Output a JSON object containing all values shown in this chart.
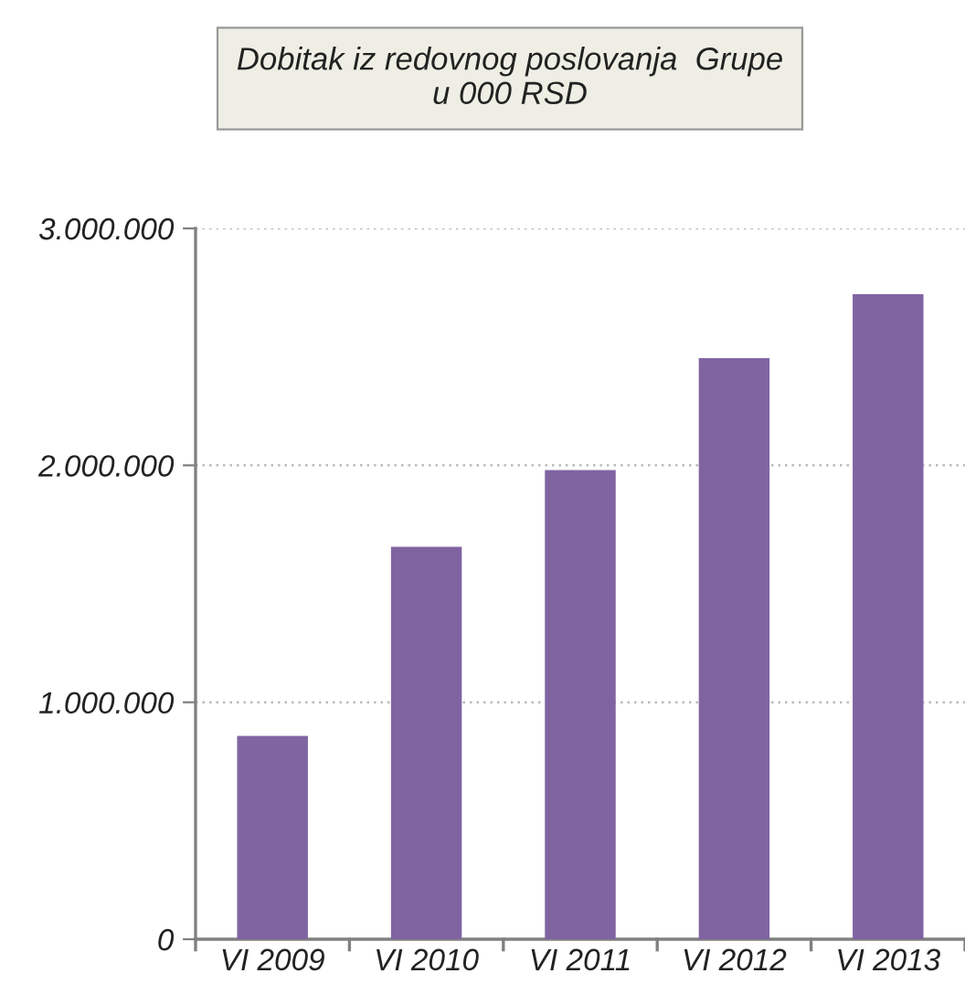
{
  "chart_data": {
    "type": "bar",
    "title": "Dobitak iz redovnog poslovanja  Grupe\nu 000 RSD",
    "categories": [
      "VI 2009",
      "VI 2010",
      "VI 2011",
      "VI 2012",
      "VI 2013"
    ],
    "values": [
      858000,
      1656000,
      1980000,
      2452000,
      2722000
    ],
    "color": "#8064a2",
    "ylim": [
      0,
      3000000
    ],
    "yticks": [
      {
        "value": 0,
        "label": "0"
      },
      {
        "value": 1000000,
        "label": "1.000.000"
      },
      {
        "value": 2000000,
        "label": "2.000.000"
      },
      {
        "value": 3000000,
        "label": "3.000.000"
      }
    ],
    "grid": "y"
  }
}
